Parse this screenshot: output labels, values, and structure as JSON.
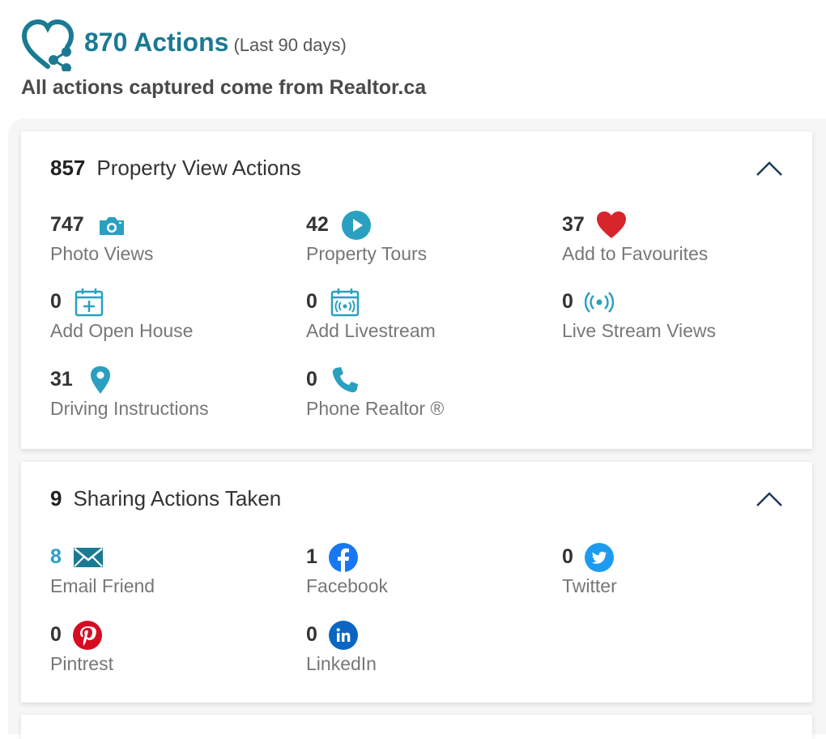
{
  "header": {
    "title": "870 Actions",
    "subtitle": "(Last 90 days)",
    "note": "All actions captured come from Realtor.ca",
    "brand_color": "#1b7a93"
  },
  "property_section": {
    "count": "857",
    "title": "Property View Actions",
    "stats": [
      {
        "value": "747",
        "label": "Photo Views",
        "icon": "camera-icon"
      },
      {
        "value": "42",
        "label": "Property Tours",
        "icon": "play-icon"
      },
      {
        "value": "37",
        "label": "Add to Favourites",
        "icon": "heart-icon"
      },
      {
        "value": "0",
        "label": "Add Open House",
        "icon": "calendar-plus-icon"
      },
      {
        "value": "0",
        "label": "Add Livestream",
        "icon": "calendar-stream-icon"
      },
      {
        "value": "0",
        "label": "Live Stream Views",
        "icon": "broadcast-icon"
      },
      {
        "value": "31",
        "label": "Driving Instructions",
        "icon": "map-pin-icon"
      },
      {
        "value": "0",
        "label": "Phone Realtor ®",
        "icon": "phone-icon"
      }
    ]
  },
  "sharing_section": {
    "count": "9",
    "title": "Sharing Actions Taken",
    "stats": [
      {
        "value": "8",
        "label": "Email Friend",
        "icon": "envelope-icon"
      },
      {
        "value": "1",
        "label": "Facebook",
        "icon": "facebook-icon"
      },
      {
        "value": "0",
        "label": "Twitter",
        "icon": "twitter-icon"
      },
      {
        "value": "0",
        "label": "Pintrest",
        "icon": "pinterest-icon"
      },
      {
        "value": "0",
        "label": "LinkedIn",
        "icon": "linkedin-icon"
      }
    ]
  },
  "colors": {
    "accent": "#2aa0c0",
    "heart": "#d7262b",
    "facebook": "#1877f2",
    "twitter": "#1d9bf0",
    "pinterest": "#d50c22",
    "linkedin": "#0a66c2"
  }
}
